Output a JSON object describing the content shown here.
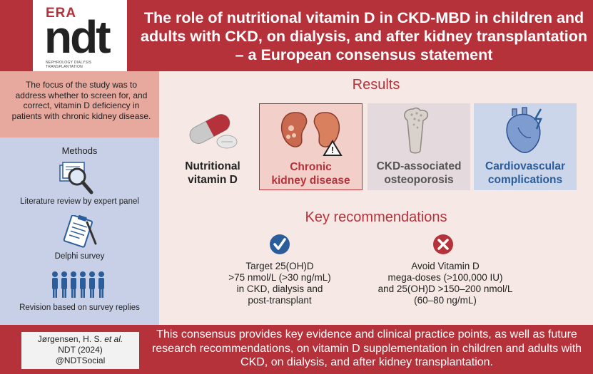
{
  "logo": {
    "era": "ERA",
    "ndt": "ndt",
    "sub": "NEPHROLOGY DIALYSIS TRANSPLANTATION"
  },
  "title": "The role of nutritional vitamin D in CKD-MBD in children and adults with CKD, on dialysis, and after kidney transplantation – a European consensus statement",
  "left": {
    "focus": "The focus of the study was to address whether to screen for, and correct, vitamin D deficiency in patients with chronic kidney disease.",
    "methods_heading": "Methods",
    "methods": [
      {
        "label": "Literature review by expert panel",
        "icon": "magnifier-icon"
      },
      {
        "label": "Delphi survey",
        "icon": "clipboard-icon"
      },
      {
        "label": "Revision based on survey replies",
        "icon": "people-icon"
      }
    ]
  },
  "results": {
    "heading": "Results",
    "items": [
      {
        "label_l1": "Nutritional",
        "label_l2": "vitamin D",
        "icon": "pill-icon",
        "color": "#222222"
      },
      {
        "label_l1": "Chronic",
        "label_l2": "kidney disease",
        "icon": "kidney-icon",
        "color": "#b5323b"
      },
      {
        "label_l1": "CKD-associated",
        "label_l2": "osteoporosis",
        "icon": "bone-icon",
        "color": "#555555"
      },
      {
        "label_l1": "Cardiovascular",
        "label_l2": "complications",
        "icon": "heart-icon",
        "color": "#2b5d9b"
      }
    ]
  },
  "recommendations": {
    "heading": "Key recommendations",
    "do": {
      "icon": "check-icon",
      "lines": [
        "Target 25(OH)D",
        ">75 nmol/L (>30 ng/mL)",
        "in CKD, dialysis and",
        "post-transplant"
      ]
    },
    "avoid": {
      "icon": "cross-icon",
      "lines": [
        "Avoid Vitamin D",
        "mega-doses (>100,000 IU)",
        "and 25(OH)D >150–200 nmol/L",
        "(60–80 ng/mL)"
      ]
    }
  },
  "footer": {
    "citation": {
      "author": "Jørgensen, H. S.",
      "etal": "et al.",
      "journal": "NDT (2024)",
      "social": "@NDTSocial"
    },
    "summary": "This consensus provides key evidence and clinical practice points, as well as future research recommendations, on vitamin D supplementation in children and adults with CKD, on dialysis, and after kidney transplantation."
  }
}
